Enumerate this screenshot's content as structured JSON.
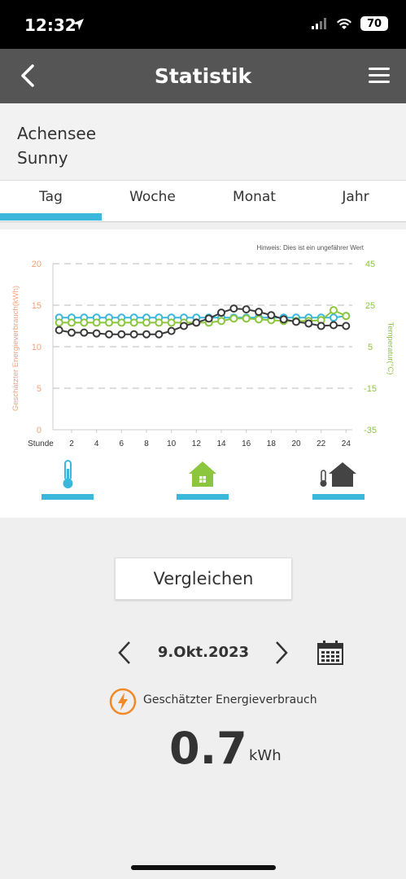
{
  "status": {
    "time": "12:32",
    "battery": "70"
  },
  "nav": {
    "title": "Statistik"
  },
  "location": {
    "line1": "Achensee",
    "line2": "Sunny"
  },
  "tabs": [
    {
      "label": "Tag"
    },
    {
      "label": "Woche"
    },
    {
      "label": "Monat"
    },
    {
      "label": "Jahr"
    }
  ],
  "chart_data": {
    "type": "line",
    "note": "Hinweis: Dies ist ein ungefährer Wert",
    "xlabel": "Stunde",
    "ylabel_left": "Geschätzter Energieverbrauch(kWh)",
    "ylabel_right": "Temperatur(°C)",
    "x": [
      1,
      2,
      3,
      4,
      5,
      6,
      7,
      8,
      9,
      10,
      11,
      12,
      13,
      14,
      15,
      16,
      17,
      18,
      19,
      20,
      21,
      22,
      23,
      24
    ],
    "xticks": [
      "2",
      "4",
      "6",
      "8",
      "10",
      "12",
      "14",
      "16",
      "18",
      "20",
      "22",
      "24"
    ],
    "ylim_left": [
      0,
      20
    ],
    "yticks_left": [
      "0",
      "5",
      "10",
      "15",
      "20"
    ],
    "ylim_right": [
      -35,
      45
    ],
    "yticks_right": [
      "-35",
      "-15",
      "5",
      "25",
      "45"
    ],
    "grid": true,
    "series": [
      {
        "axis": "left",
        "color": "#3bb7db",
        "values": [
          13.5,
          13.5,
          13.5,
          13.5,
          13.5,
          13.5,
          13.5,
          13.5,
          13.5,
          13.5,
          13.5,
          13.5,
          13.5,
          13.5,
          13.5,
          13.5,
          13.5,
          13.5,
          13.5,
          13.5,
          13.5,
          13.5,
          13.5,
          13.7
        ]
      },
      {
        "axis": "left",
        "color": "#8cc63f",
        "values": [
          12.9,
          12.9,
          12.9,
          12.9,
          12.9,
          12.9,
          12.9,
          12.9,
          12.9,
          12.9,
          12.9,
          12.9,
          12.9,
          13.1,
          13.4,
          13.4,
          13.3,
          13.2,
          13.1,
          13.1,
          13.1,
          13.2,
          14.4,
          13.7
        ]
      },
      {
        "axis": "left",
        "color": "#3a3a3a",
        "values": [
          12.0,
          11.7,
          11.7,
          11.6,
          11.5,
          11.5,
          11.5,
          11.5,
          11.5,
          11.9,
          12.5,
          12.9,
          13.4,
          14.1,
          14.6,
          14.5,
          14.2,
          13.8,
          13.3,
          13.0,
          12.8,
          12.5,
          12.6,
          12.5
        ]
      }
    ]
  },
  "modes": [
    {
      "icon": "thermometer-icon"
    },
    {
      "icon": "house-icon"
    },
    {
      "icon": "thermometer-house-icon"
    }
  ],
  "compare": {
    "label": "Vergleichen"
  },
  "date": {
    "value": "9.Okt.2023"
  },
  "energy": {
    "label": "Geschätzter Energieverbrauch",
    "value": "0.7",
    "unit": "kWh"
  },
  "colors": {
    "accent": "#3bb7db",
    "green": "#8cc63f",
    "dark": "#3a3a3a",
    "orange": "#f08a24",
    "left_axis": "#f5a07a",
    "right_axis": "#8cc63f"
  }
}
